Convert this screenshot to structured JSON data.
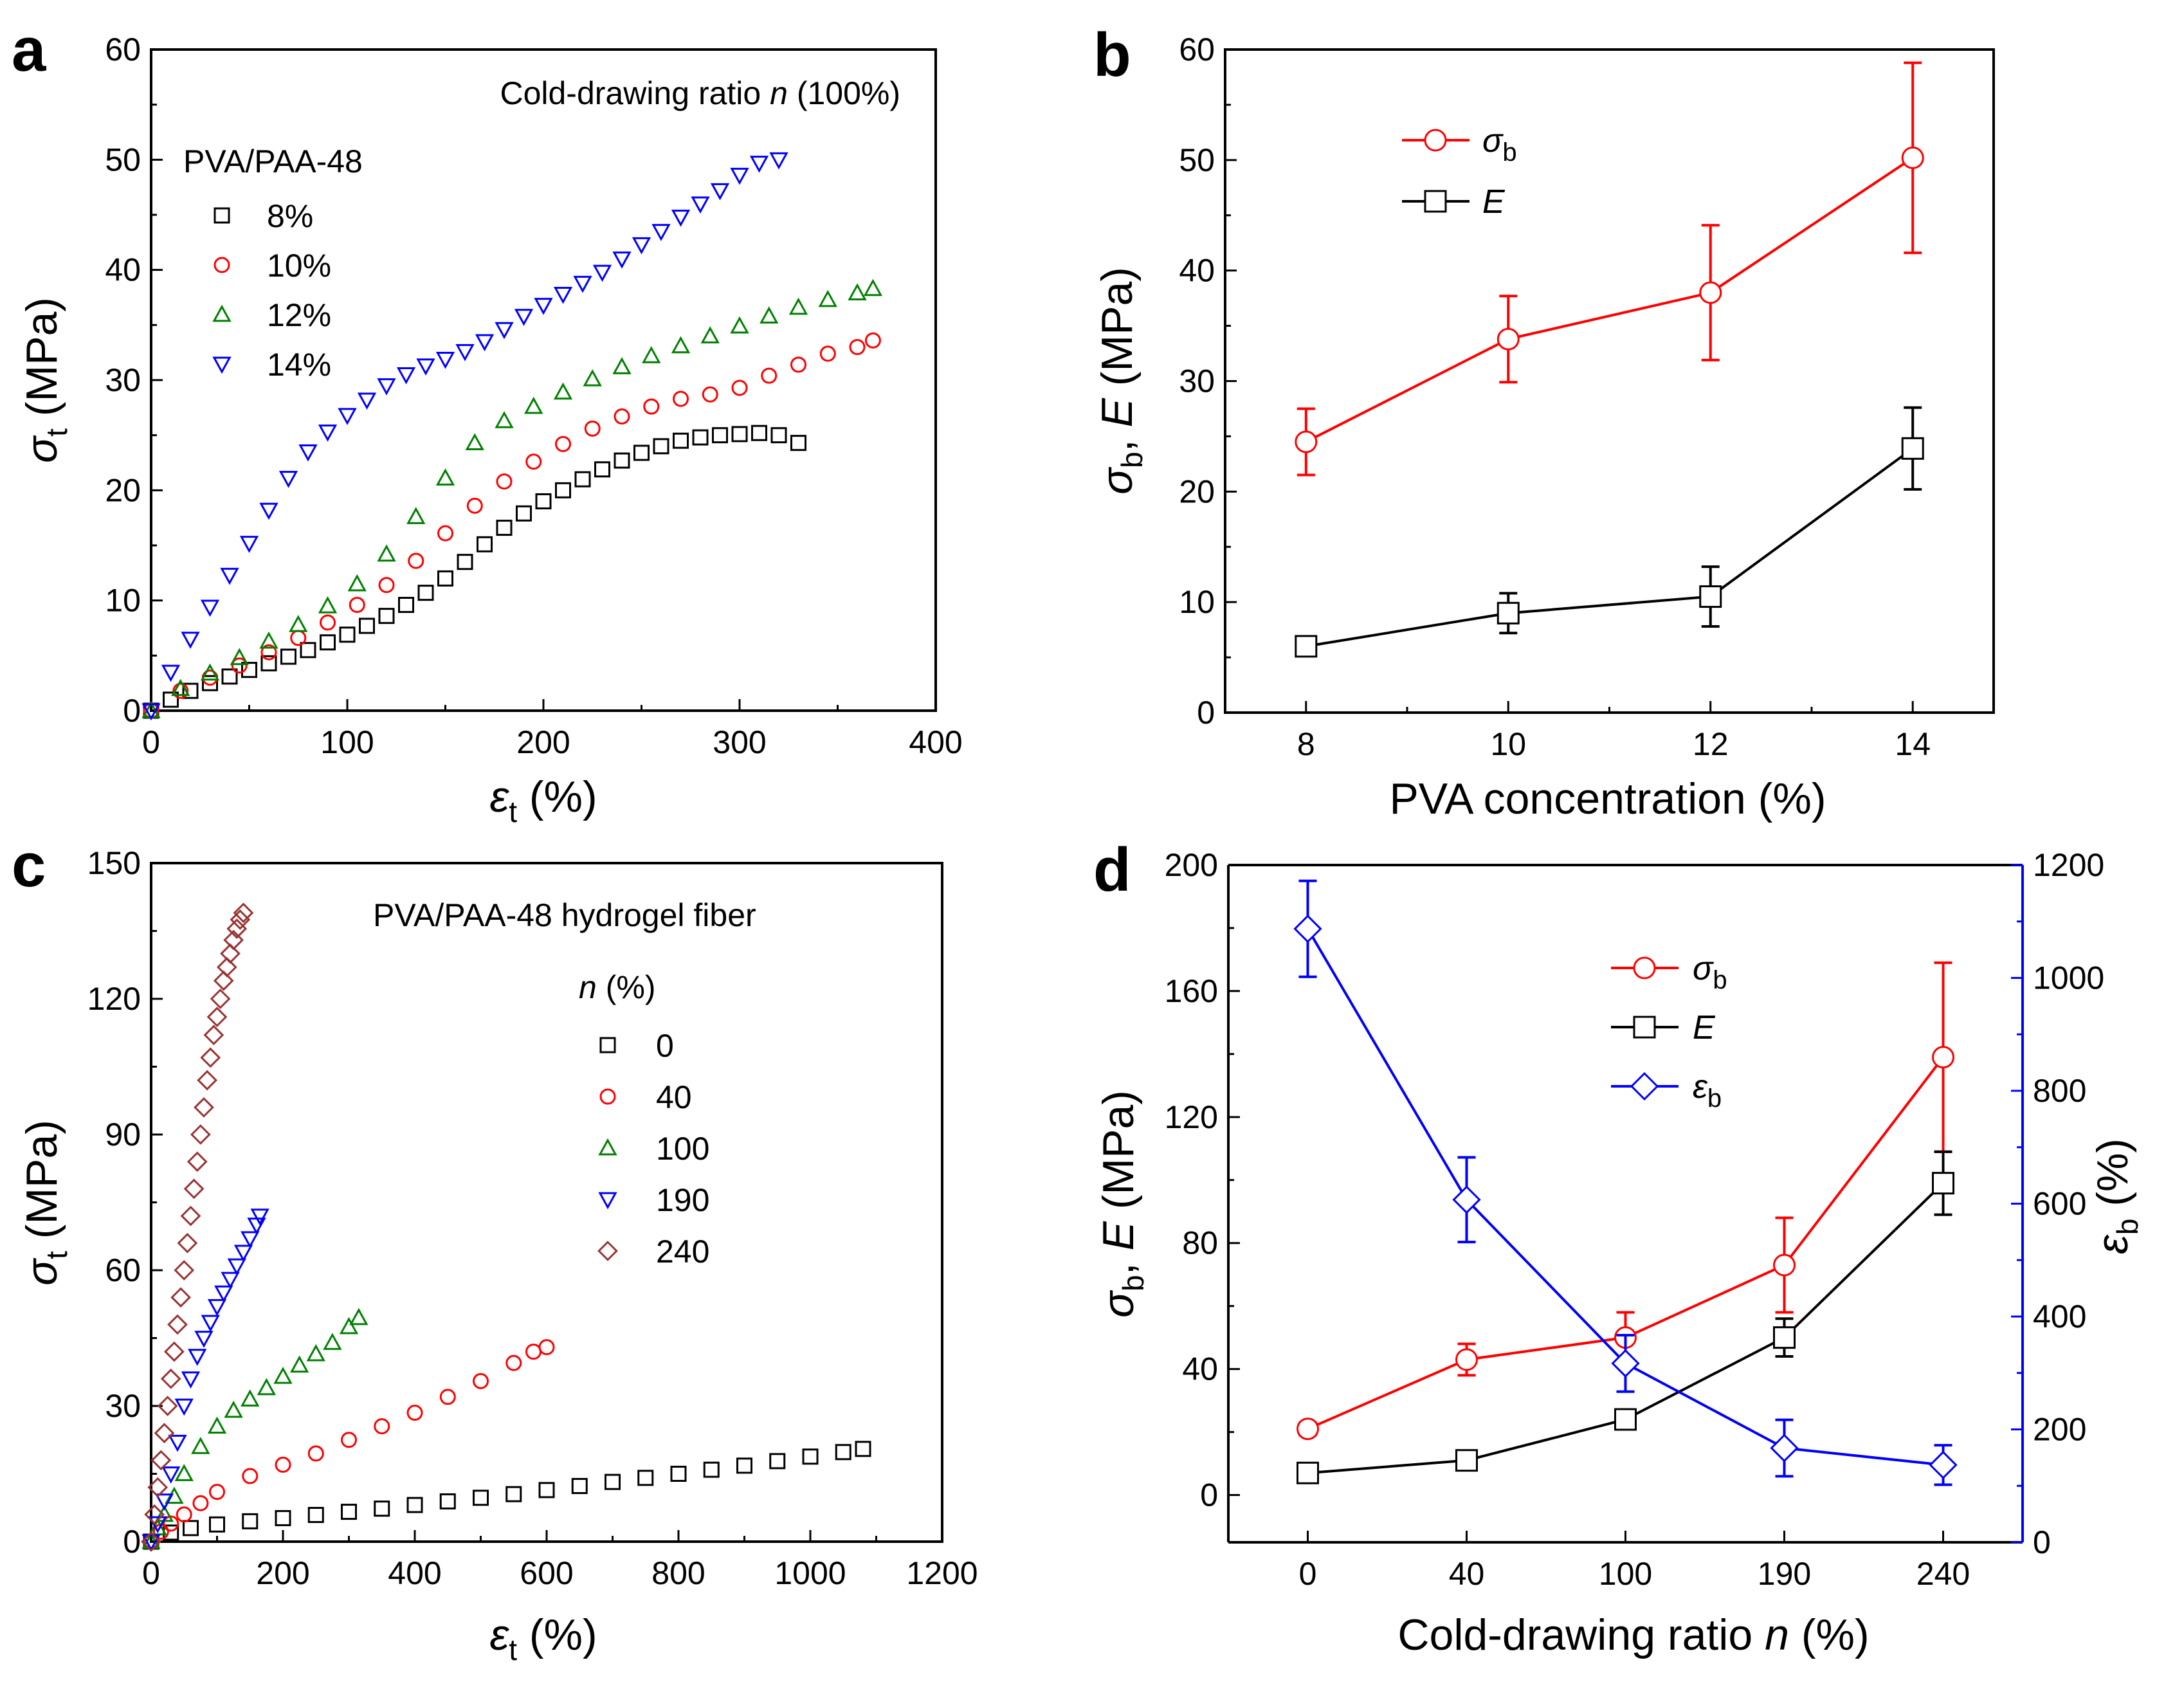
{
  "panels": [
    {
      "id": "a",
      "letter": "a",
      "chart_data": {
        "type": "scatter",
        "title": "",
        "annotations": [
          {
            "text": "Cold-drawing ratio ",
            "italic_part": "n",
            "suffix": " (100%)"
          },
          {
            "text": "PVA/PAA-48"
          }
        ],
        "xlabel": {
          "symbol": "ε",
          "sub": "t",
          "unit": " (%)"
        },
        "ylabel": {
          "symbol": "σ",
          "sub": "t",
          "unit": " (MPa)"
        },
        "xlim": [
          0,
          400
        ],
        "ylim": [
          0,
          60
        ],
        "xticks": [
          0,
          100,
          200,
          300,
          400
        ],
        "yticks": [
          0,
          10,
          20,
          30,
          40,
          50,
          60
        ],
        "grid": false,
        "legend_position": "top-left",
        "legend_title": "",
        "series": [
          {
            "name": "8%",
            "marker": "square",
            "color": "#000000",
            "x": [
              0,
              10,
              20,
              30,
              40,
              50,
              60,
              70,
              80,
              90,
              100,
              110,
              120,
              130,
              140,
              150,
              160,
              170,
              180,
              190,
              200,
              210,
              220,
              230,
              240,
              250,
              260,
              270,
              280,
              290,
              300,
              310,
              320,
              330
            ],
            "y": [
              0,
              1.0,
              1.8,
              2.5,
              3.1,
              3.7,
              4.3,
              4.9,
              5.5,
              6.2,
              6.9,
              7.7,
              8.6,
              9.6,
              10.7,
              12.0,
              13.5,
              15.1,
              16.6,
              17.9,
              19.0,
              20.0,
              21.0,
              21.9,
              22.7,
              23.4,
              24.0,
              24.5,
              24.8,
              25.0,
              25.1,
              25.2,
              25.0,
              24.3
            ]
          },
          {
            "name": "10%",
            "marker": "circle",
            "color": "#ff0000",
            "x": [
              0,
              15,
              30,
              45,
              60,
              75,
              90,
              105,
              120,
              135,
              150,
              165,
              180,
              195,
              210,
              225,
              240,
              255,
              270,
              285,
              300,
              315,
              330,
              345,
              360,
              368
            ],
            "y": [
              0,
              1.8,
              3.0,
              4.1,
              5.3,
              6.6,
              8.0,
              9.6,
              11.4,
              13.6,
              16.1,
              18.6,
              20.8,
              22.6,
              24.2,
              25.6,
              26.7,
              27.6,
              28.3,
              28.7,
              29.3,
              30.4,
              31.4,
              32.4,
              33.0,
              33.6
            ]
          },
          {
            "name": "12%",
            "marker": "triangle-up",
            "color": "#008000",
            "x": [
              0,
              15,
              30,
              45,
              60,
              75,
              90,
              105,
              120,
              135,
              150,
              165,
              180,
              195,
              210,
              225,
              240,
              255,
              270,
              285,
              300,
              315,
              330,
              345,
              360,
              368
            ],
            "y": [
              0,
              2.0,
              3.4,
              4.8,
              6.3,
              7.8,
              9.5,
              11.5,
              14.2,
              17.6,
              21.1,
              24.3,
              26.3,
              27.6,
              28.9,
              30.1,
              31.2,
              32.2,
              33.1,
              34.0,
              34.9,
              35.8,
              36.6,
              37.3,
              37.9,
              38.3
            ]
          },
          {
            "name": "14%",
            "marker": "triangle-down",
            "color": "#0000ff",
            "x": [
              0,
              10,
              20,
              30,
              40,
              50,
              60,
              70,
              80,
              90,
              100,
              110,
              120,
              130,
              140,
              150,
              160,
              170,
              180,
              190,
              200,
              210,
              220,
              230,
              240,
              250,
              260,
              270,
              280,
              290,
              300,
              310,
              320
            ],
            "y": [
              0,
              3.5,
              6.5,
              9.4,
              12.3,
              15.2,
              18.2,
              21.1,
              23.5,
              25.3,
              26.8,
              28.2,
              29.5,
              30.5,
              31.3,
              31.9,
              32.6,
              33.5,
              34.6,
              35.8,
              36.8,
              37.8,
              38.8,
              39.8,
              41.0,
              42.3,
              43.5,
              44.8,
              46.0,
              47.2,
              48.6,
              49.7,
              50.0
            ]
          }
        ]
      }
    },
    {
      "id": "b",
      "letter": "b",
      "chart_data": {
        "type": "line",
        "title": "",
        "xlabel": {
          "text": "PVA concentration  (%)"
        },
        "ylabel": {
          "parts": [
            "σ",
            "b",
            ", ",
            "E",
            " (MPa)"
          ]
        },
        "xlim": [
          7.2,
          14.8
        ],
        "ylim": [
          0,
          60
        ],
        "xticks": [
          8,
          10,
          12,
          14
        ],
        "yticks": [
          0,
          10,
          20,
          30,
          40,
          50,
          60
        ],
        "grid": false,
        "legend_position": "top-left",
        "series": [
          {
            "name": "σb",
            "name_symbol": "σ",
            "name_sub": "b",
            "marker": "circle",
            "color": "#ff0000",
            "x": [
              8,
              10,
              12,
              14
            ],
            "y": [
              24.5,
              33.8,
              38.0,
              50.2
            ],
            "err": [
              3.0,
              3.9,
              6.1,
              8.6
            ]
          },
          {
            "name": "E",
            "name_symbol": "E",
            "name_sub": "",
            "marker": "square",
            "color": "#000000",
            "x": [
              8,
              10,
              12,
              14
            ],
            "y": [
              6.0,
              9.0,
              10.5,
              23.9
            ],
            "err": [
              0.8,
              1.8,
              2.7,
              3.7
            ]
          }
        ]
      }
    },
    {
      "id": "c",
      "letter": "c",
      "chart_data": {
        "type": "scatter",
        "title": "",
        "annotations": [
          {
            "text": "PVA/PAA-48 hydrogel fiber"
          }
        ],
        "xlabel": {
          "symbol": "ε",
          "sub": "t",
          "unit": " (%)"
        },
        "ylabel": {
          "symbol": "σ",
          "sub": "t",
          "unit": " (MPa)"
        },
        "xlim": [
          0,
          1200
        ],
        "ylim": [
          0,
          150
        ],
        "xticks": [
          0,
          200,
          400,
          600,
          800,
          1000,
          1200
        ],
        "yticks": [
          0,
          30,
          60,
          90,
          120,
          150
        ],
        "grid": false,
        "legend_position": "top-right",
        "legend_title": {
          "italic": "n",
          "rest": " (%)"
        },
        "series": [
          {
            "name": "0",
            "marker": "square",
            "color": "#000000",
            "x": [
              0,
              30,
              60,
              100,
              150,
              200,
              250,
              300,
              350,
              400,
              450,
              500,
              550,
              600,
              650,
              700,
              750,
              800,
              850,
              900,
              950,
              1000,
              1050,
              1080
            ],
            "y": [
              0,
              2.0,
              3.0,
              3.8,
              4.5,
              5.2,
              5.9,
              6.6,
              7.3,
              8.1,
              8.9,
              9.7,
              10.5,
              11.4,
              12.3,
              13.2,
              14.1,
              15.0,
              15.9,
              16.8,
              17.8,
              18.8,
              19.8,
              20.5
            ]
          },
          {
            "name": "40",
            "marker": "circle",
            "color": "#ff0000",
            "x": [
              0,
              15,
              30,
              50,
              75,
              100,
              150,
              200,
              250,
              300,
              350,
              400,
              450,
              500,
              550,
              580,
              600
            ],
            "y": [
              0,
              2.2,
              4.0,
              6.0,
              8.5,
              11.0,
              14.5,
              17.0,
              19.5,
              22.5,
              25.5,
              28.5,
              32.0,
              35.5,
              39.5,
              42.0,
              43.0
            ]
          },
          {
            "name": "100",
            "marker": "triangle-up",
            "color": "#008000",
            "x": [
              0,
              10,
              20,
              35,
              50,
              75,
              100,
              125,
              150,
              175,
              200,
              225,
              250,
              275,
              300,
              315
            ],
            "y": [
              0,
              3,
              6,
              10,
              15,
              21,
              25.5,
              29,
              31.5,
              34,
              36.5,
              39,
              41.5,
              44,
              47.5,
              49.5
            ]
          },
          {
            "name": "190",
            "marker": "triangle-down",
            "color": "#0000ff",
            "x": [
              0,
              10,
              20,
              30,
              40,
              50,
              60,
              70,
              80,
              90,
              100,
              110,
              120,
              130,
              140,
              150,
              160,
              165
            ],
            "y": [
              0,
              4,
              9,
              15,
              22,
              30,
              36,
              41,
              45,
              48.5,
              52,
              55,
              58,
              61,
              64,
              67,
              70,
              72
            ]
          },
          {
            "name": "240",
            "marker": "diamond",
            "color": "#993333",
            "x": [
              0,
              5,
              10,
              15,
              20,
              25,
              30,
              35,
              40,
              45,
              50,
              55,
              60,
              65,
              70,
              75,
              80,
              85,
              90,
              95,
              100,
              105,
              110,
              115,
              120,
              125,
              130,
              135,
              140
            ],
            "y": [
              0,
              6,
              12,
              18,
              24,
              30,
              36,
              42,
              48,
              54,
              60,
              66,
              72,
              78,
              84,
              90,
              96,
              102,
              107,
              112,
              116,
              120,
              124,
              127,
              130,
              133,
              135.5,
              137.5,
              139
            ]
          }
        ]
      }
    },
    {
      "id": "d",
      "letter": "d",
      "chart_data": {
        "type": "line",
        "title": "",
        "xlabel": {
          "text": "Cold-drawing ratio ",
          "italic": "n",
          "unit": " (%)"
        },
        "ylabel": {
          "parts": [
            "σ",
            "b",
            ", ",
            "E",
            " (MPa)"
          ]
        },
        "ylabel_right": {
          "symbol": "ε",
          "sub": "b",
          "unit": " (%)"
        },
        "categories": [
          "0",
          "40",
          "100",
          "190",
          "240"
        ],
        "ylim": [
          -15,
          200
        ],
        "ylim_right": [
          0,
          1200
        ],
        "yticks": [
          0,
          40,
          80,
          120,
          160,
          200
        ],
        "yticks_right": [
          0,
          200,
          400,
          600,
          800,
          1000,
          1200
        ],
        "grid": false,
        "legend_position": "top-right",
        "right_axis_color": "#0000ff",
        "series": [
          {
            "name": "σb",
            "name_symbol": "σ",
            "name_sub": "b",
            "axis": "left",
            "marker": "circle",
            "color": "#ff0000",
            "y": [
              21,
              43,
              50,
              73,
              139
            ],
            "err": [
              2,
              5,
              8,
              15,
              30
            ]
          },
          {
            "name": "E",
            "name_symbol": "E",
            "name_sub": "",
            "axis": "left",
            "marker": "square",
            "color": "#000000",
            "y": [
              7,
              11,
              24,
              50,
              99
            ],
            "err": [
              2,
              2,
              3,
              6,
              10
            ]
          },
          {
            "name": "εb",
            "name_symbol": "ε",
            "name_sub": "b",
            "axis": "right",
            "marker": "diamond",
            "color": "#0000ff",
            "y": [
              1087,
              607,
              317,
              167,
              137
            ],
            "err": [
              85,
              75,
              50,
              50,
              35
            ]
          }
        ]
      }
    }
  ]
}
